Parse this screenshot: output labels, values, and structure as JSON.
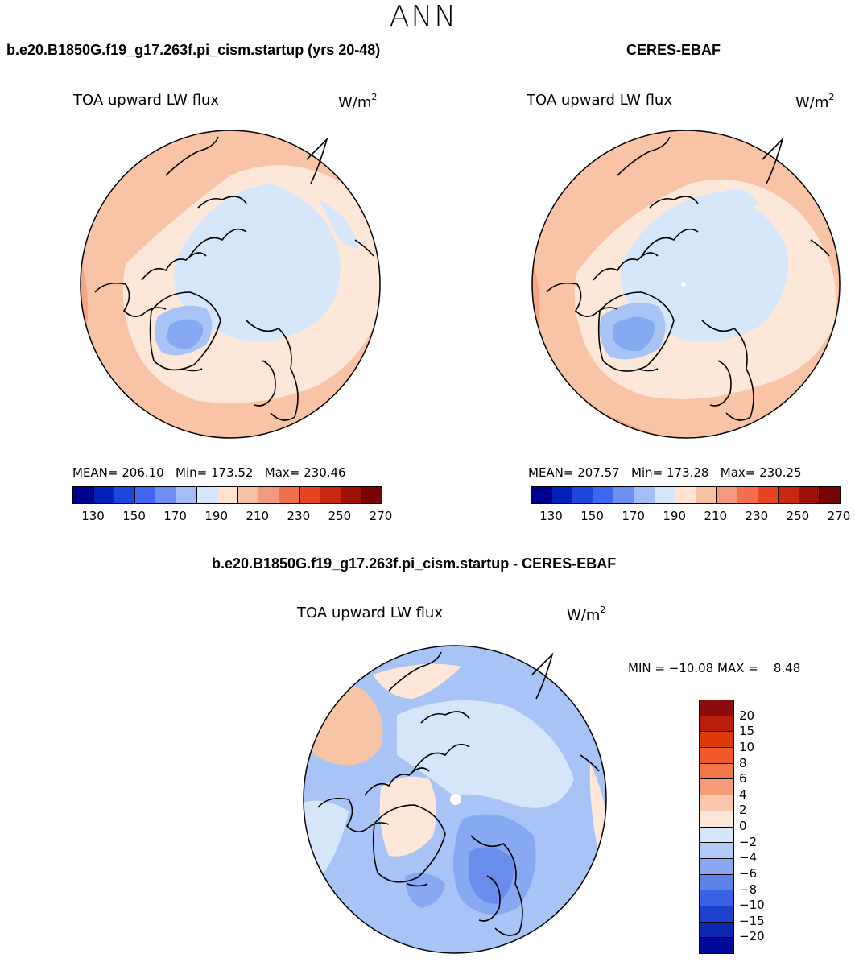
{
  "season": "ANN",
  "panels": {
    "model": {
      "title": "b.e20.B1850G.f19_g17.263f.pi_cism.startup (yrs 20-48)",
      "variable": "TOA upward LW flux",
      "units": "W/m",
      "units_exp": "2",
      "stats": "MEAN= 206.10   Min= 173.52   Max= 230.46",
      "ticks": [
        "130",
        "150",
        "170",
        "190",
        "210",
        "230",
        "250",
        "270"
      ]
    },
    "obs": {
      "title": "CERES-EBAF",
      "variable": "TOA upward LW flux",
      "units": "W/m",
      "units_exp": "2",
      "stats": "MEAN= 207.57   Min= 173.28   Max= 230.25",
      "ticks": [
        "130",
        "150",
        "170",
        "190",
        "210",
        "230",
        "250",
        "270"
      ]
    },
    "diff": {
      "title": "b.e20.B1850G.f19_g17.263f.pi_cism.startup - CERES-EBAF",
      "variable": "TOA upward LW flux",
      "units": "W/m",
      "units_exp": "2",
      "minmax": "MIN = −10.08 MAX =    8.48",
      "ticks": [
        "20",
        "15",
        "10",
        "8",
        "6",
        "4",
        "2",
        "0",
        "−2",
        "−4",
        "−6",
        "−8",
        "−10",
        "−15",
        "−20"
      ]
    }
  },
  "colorbars": {
    "abs": [
      "#000090",
      "#0022b8",
      "#1e45dc",
      "#3e66f0",
      "#6e8ef2",
      "#a4bdf8",
      "#d6e6fa",
      "#fde3d0",
      "#f9c1a3",
      "#f49a7c",
      "#f2704e",
      "#e84420",
      "#c82810",
      "#a01008",
      "#7a0404"
    ],
    "diff": [
      "#8a0c0c",
      "#b81e08",
      "#de3a08",
      "#f05a28",
      "#f2784a",
      "#f59c78",
      "#f9c7aa",
      "#fde7d9",
      "#d6e6fa",
      "#b0c9f8",
      "#8aa8f2",
      "#5c82ea",
      "#3a62e6",
      "#1c40cc",
      "#0a28b0",
      "#000a96"
    ]
  },
  "map_colors": {
    "warm_light": "#fde7d9",
    "warm": "#f9c4a6",
    "warm_mid": "#f5a585",
    "pale_blue": "#d6e6fa",
    "blue": "#a8c4f6",
    "blue_mid": "#87a9f2",
    "blue_dark": "#6a8cec"
  }
}
